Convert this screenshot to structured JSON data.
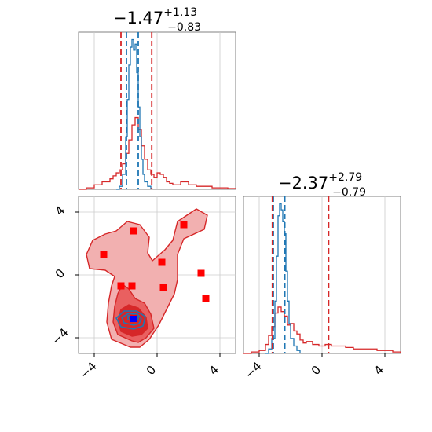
{
  "chart_data": [
    {
      "type": "histogram",
      "panel": "top-left",
      "title": {
        "median": "−1.47",
        "plus": "+1.13",
        "minus": "−0.83"
      },
      "xlim": [
        -5,
        5
      ],
      "grid": true,
      "series": [
        {
          "color": "#d62728",
          "x": [
            -5,
            -4.5,
            -4,
            -3.5,
            -3,
            -2.8,
            -2.6,
            -2.4,
            -2.2,
            -2,
            -1.8,
            -1.6,
            -1.4,
            -1.2,
            -1,
            -0.8,
            -0.6,
            -0.4,
            -0.2,
            0,
            0.2,
            0.4,
            0.6,
            0.8,
            1,
            1.5,
            2,
            2.5,
            3,
            3.5,
            4,
            4.5,
            5
          ],
          "y": [
            0,
            0.01,
            0.03,
            0.05,
            0.07,
            0.09,
            0.11,
            0.13,
            0.17,
            0.24,
            0.33,
            0.43,
            0.48,
            0.4,
            0.29,
            0.2,
            0.13,
            0.1,
            0.08,
            0.11,
            0.1,
            0.08,
            0.05,
            0.04,
            0.03,
            0.05,
            0.03,
            0.02,
            0.02,
            0.01,
            0.01,
            0.005,
            0
          ]
        },
        {
          "color": "#1f77b4",
          "x": [
            -2.6,
            -2.4,
            -2.2,
            -2,
            -1.9,
            -1.8,
            -1.7,
            -1.6,
            -1.5,
            -1.4,
            -1.3,
            -1.2,
            -1.1,
            -1,
            -0.9,
            -0.8,
            -0.6,
            -0.4
          ],
          "y": [
            0,
            0.02,
            0.1,
            0.35,
            0.6,
            0.83,
            0.95,
            1.0,
            0.93,
            0.97,
            0.78,
            0.55,
            0.35,
            0.2,
            0.1,
            0.05,
            0.02,
            0
          ]
        }
      ],
      "vlines": [
        {
          "x": -2.3,
          "color": "#d62728"
        },
        {
          "x": -0.34,
          "color": "#d62728"
        },
        {
          "x": -1.95,
          "color": "#1f77b4"
        },
        {
          "x": -1.2,
          "color": "#1f77b4"
        }
      ]
    },
    {
      "type": "contour",
      "panel": "bottom-left",
      "xlim": [
        -5,
        5
      ],
      "ylim": [
        -5,
        5
      ],
      "xticks": [
        "−4",
        "0",
        "4"
      ],
      "yticks": [
        "−4",
        "0",
        "4"
      ],
      "grid": true,
      "red_levels": [
        {
          "fill": "#f2b0b0",
          "points": [
            [
              -1.7,
              -4.6
            ],
            [
              -2.9,
              -4.1
            ],
            [
              -3.2,
              -3
            ],
            [
              -3.1,
              -1.8
            ],
            [
              -2.9,
              -0.7
            ],
            [
              -2.7,
              -0.1
            ],
            [
              -3.3,
              0.3
            ],
            [
              -4.3,
              0.4
            ],
            [
              -4.5,
              1.3
            ],
            [
              -4.1,
              2.2
            ],
            [
              -3.3,
              2.6
            ],
            [
              -2.6,
              2.8
            ],
            [
              -1.9,
              3.4
            ],
            [
              -1.1,
              3.2
            ],
            [
              -0.5,
              2.4
            ],
            [
              -0.6,
              1.4
            ],
            [
              -0.3,
              0.9
            ],
            [
              0.5,
              1.6
            ],
            [
              1,
              2.2
            ],
            [
              1.3,
              3.4
            ],
            [
              2.5,
              4.2
            ],
            [
              3.2,
              3.8
            ],
            [
              3,
              2.9
            ],
            [
              1.7,
              2.3
            ],
            [
              1.3,
              1.3
            ],
            [
              1.3,
              -0.3
            ],
            [
              1.1,
              -1.2
            ],
            [
              0.6,
              -2.2
            ],
            [
              0.1,
              -3.2
            ],
            [
              -0.5,
              -4.1
            ],
            [
              -1.1,
              -4.6
            ]
          ]
        },
        {
          "fill": "#e96060",
          "points": [
            [
              -1.6,
              -4.2
            ],
            [
              -2.5,
              -3.8
            ],
            [
              -2.8,
              -3
            ],
            [
              -2.7,
              -2
            ],
            [
              -2.5,
              -1.2
            ],
            [
              -2.2,
              -0.6
            ],
            [
              -1.8,
              -0.9
            ],
            [
              -1.4,
              -1.5
            ],
            [
              -0.8,
              -1.8
            ],
            [
              -0.4,
              -2.5
            ],
            [
              -0.2,
              -3.4
            ],
            [
              -0.7,
              -4
            ],
            [
              -1.2,
              -4.3
            ]
          ]
        },
        {
          "fill": "#d62728",
          "points": [
            [
              -1.6,
              -3.9
            ],
            [
              -2.3,
              -3.6
            ],
            [
              -2.5,
              -2.9
            ],
            [
              -2.3,
              -2.2
            ],
            [
              -1.8,
              -1.9
            ],
            [
              -1.2,
              -2.1
            ],
            [
              -0.7,
              -2.7
            ],
            [
              -0.6,
              -3.4
            ],
            [
              -1,
              -3.8
            ]
          ]
        }
      ],
      "blue_levels": [
        {
          "points": [
            [
              -1.5,
              -3.45
            ],
            [
              -2.3,
              -3.3
            ],
            [
              -2.6,
              -2.75
            ],
            [
              -2.1,
              -2.3
            ],
            [
              -1.3,
              -2.3
            ],
            [
              -0.75,
              -2.65
            ],
            [
              -0.9,
              -3.25
            ]
          ]
        },
        {
          "points": [
            [
              -1.5,
              -3.2
            ],
            [
              -2.1,
              -3.05
            ],
            [
              -2.25,
              -2.7
            ],
            [
              -1.8,
              -2.45
            ],
            [
              -1.25,
              -2.5
            ],
            [
              -1,
              -2.8
            ],
            [
              -1.15,
              -3.1
            ]
          ]
        },
        {
          "points": [
            [
              -1.5,
              -2.95
            ],
            [
              -1.85,
              -2.85
            ],
            [
              -1.85,
              -2.6
            ],
            [
              -1.5,
              -2.55
            ],
            [
              -1.2,
              -2.65
            ],
            [
              -1.2,
              -2.85
            ]
          ]
        }
      ],
      "red_markers": [
        {
          "x": -1.47,
          "y": -2.77
        },
        {
          "x": 0.3,
          "y": 0.8
        },
        {
          "x": 0.4,
          "y": -0.8
        },
        {
          "x": -3.4,
          "y": 1.3
        },
        {
          "x": -1.5,
          "y": 2.8
        },
        {
          "x": 1.7,
          "y": 3.2
        },
        {
          "x": -2.3,
          "y": -0.7
        },
        {
          "x": -1.6,
          "y": -0.7
        },
        {
          "x": 2.8,
          "y": 0.1
        },
        {
          "x": 3.1,
          "y": -1.5
        }
      ],
      "blue_marker": {
        "x": -1.5,
        "y": -2.8
      }
    },
    {
      "type": "histogram",
      "panel": "bottom-right",
      "title": {
        "median": "−2.37",
        "plus": "+2.79",
        "minus": "−0.79"
      },
      "xlim": [
        -5,
        5
      ],
      "xticks": [
        "−4",
        "0",
        "4"
      ],
      "grid": true,
      "series": [
        {
          "color": "#d62728",
          "x": [
            -5,
            -4.5,
            -4,
            -3.6,
            -3.4,
            -3.2,
            -3,
            -2.8,
            -2.6,
            -2.4,
            -2.2,
            -2,
            -1.8,
            -1.6,
            -1.4,
            -1.2,
            -1,
            -0.6,
            -0.2,
            0.2,
            0.6,
            1,
            1.5,
            2,
            2.5,
            3,
            3.5,
            4,
            4.5,
            5
          ],
          "y": [
            0,
            0.01,
            0.02,
            0.06,
            0.12,
            0.18,
            0.27,
            0.31,
            0.28,
            0.25,
            0.19,
            0.2,
            0.15,
            0.13,
            0.09,
            0.07,
            0.08,
            0.06,
            0.05,
            0.06,
            0.05,
            0.05,
            0.04,
            0.03,
            0.03,
            0.03,
            0.02,
            0.02,
            0.01,
            0
          ]
        },
        {
          "color": "#1f77b4",
          "x": [
            -3.6,
            -3.4,
            -3.2,
            -3,
            -2.9,
            -2.8,
            -2.7,
            -2.6,
            -2.5,
            -2.4,
            -2.3,
            -2.2,
            -2.1,
            -2,
            -1.8,
            -1.6,
            -1.4
          ],
          "y": [
            0,
            0.03,
            0.1,
            0.35,
            0.65,
            0.92,
            1.0,
            0.96,
            0.88,
            0.8,
            0.55,
            0.35,
            0.2,
            0.1,
            0.05,
            0.02,
            0
          ]
        }
      ],
      "vlines": [
        {
          "x": -3.16,
          "color": "#d62728"
        },
        {
          "x": 0.42,
          "color": "#d62728"
        },
        {
          "x": -3.1,
          "color": "#1f77b4"
        },
        {
          "x": -2.37,
          "color": "#1f77b4"
        }
      ]
    }
  ]
}
